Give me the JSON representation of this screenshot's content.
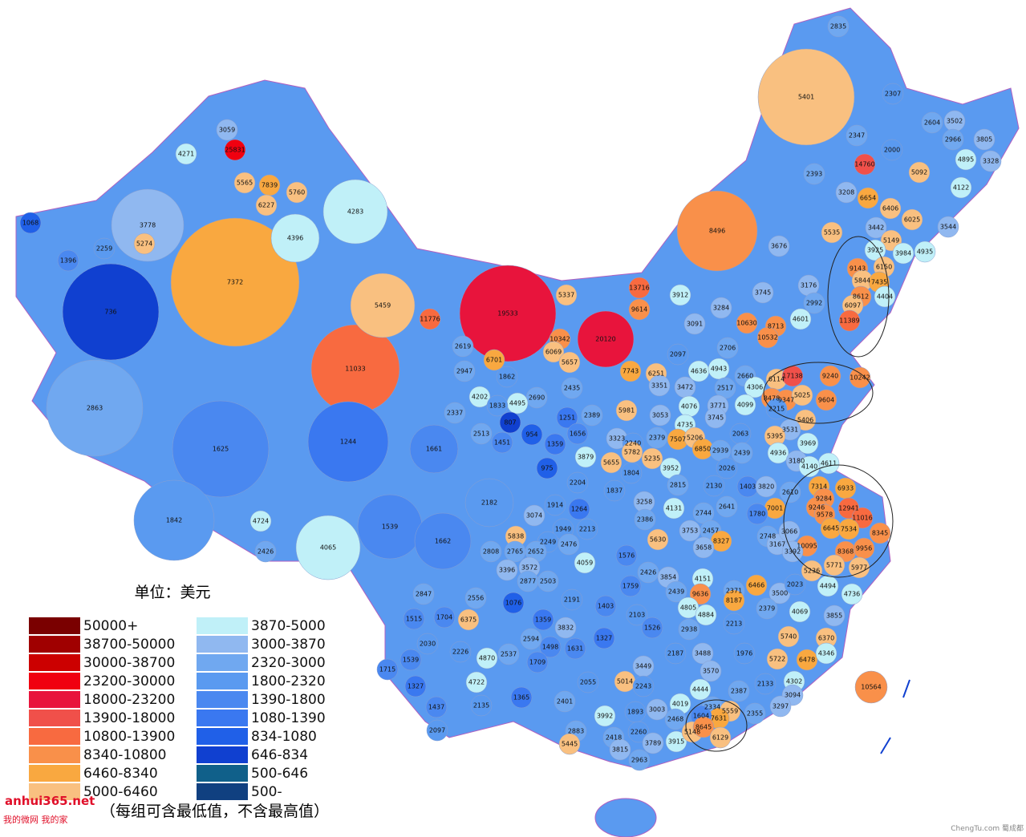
{
  "map": {
    "unit": "单位：美元",
    "note": "（每组可含最低值，不含最高值）",
    "watermark": "anhui365.net",
    "watermark_sub": "我的微网 我的家",
    "credit": "ChengTu.com 蜀成都",
    "legend": [
      {
        "label": "50000+",
        "color": "#7a0000"
      },
      {
        "label": "38700-50000",
        "color": "#a00000"
      },
      {
        "label": "30000-38700",
        "color": "#cc0000"
      },
      {
        "label": "23200-30000",
        "color": "#f00010"
      },
      {
        "label": "18000-23200",
        "color": "#e8143c"
      },
      {
        "label": "13900-18000",
        "color": "#f0504a"
      },
      {
        "label": "10800-13900",
        "color": "#f86a40"
      },
      {
        "label": "8340-10800",
        "color": "#f9904a"
      },
      {
        "label": "6460-8340",
        "color": "#f9a840"
      },
      {
        "label": "5000-6460",
        "color": "#f9c080"
      },
      {
        "label": "3870-5000",
        "color": "#c0f0f8"
      },
      {
        "label": "3000-3870",
        "color": "#90b8f0"
      },
      {
        "label": "2320-3000",
        "color": "#70a8f0"
      },
      {
        "label": "1800-2320",
        "color": "#5a9af0"
      },
      {
        "label": "1390-1800",
        "color": "#4a88f0"
      },
      {
        "label": "1080-1390",
        "color": "#3a78f0"
      },
      {
        "label": "834-1080",
        "color": "#2060e8"
      },
      {
        "label": "646-834",
        "color": "#1040d0"
      },
      {
        "label": "500-646",
        "color": "#10608a"
      },
      {
        "label": "500-",
        "color": "#104080"
      }
    ],
    "regions": [
      7372,
      19533,
      736,
      2863,
      1625,
      11033,
      1244,
      5459,
      4283,
      4396,
      3778,
      5401,
      8496,
      1842,
      4065,
      1539,
      20120,
      1662,
      2182,
      1661,
      3059,
      4271,
      25831,
      5565,
      7839,
      6227,
      5760,
      1068,
      5274,
      2259,
      1396,
      4724,
      2426,
      5337,
      13716,
      9614,
      3912,
      2835,
      2307,
      2604,
      3502,
      2347,
      2966,
      3805,
      14760,
      2000,
      4895,
      3328,
      2393,
      5092,
      4122,
      3208,
      6654,
      6406,
      6025,
      3544,
      5535,
      3676,
      3442,
      5149,
      3925,
      3984,
      4935,
      9143,
      6150,
      5844,
      7435,
      8612,
      4404,
      6097,
      11389,
      3745,
      3176,
      2992,
      3284,
      10630,
      8713,
      4601,
      3091,
      10532,
      2706,
      2097,
      4636,
      4943,
      2660,
      6251,
      3472,
      2517,
      6114,
      17138,
      9240,
      10242,
      3351,
      4306,
      8478,
      9347,
      5025,
      9604,
      4076,
      3771,
      4099,
      2215,
      5406,
      7743,
      5981,
      6701,
      1862,
      4202,
      2947,
      2619,
      11776,
      10342,
      6069,
      5657,
      2435,
      2690,
      4495,
      1833,
      2337,
      2389,
      807,
      1251,
      954,
      1359,
      1656,
      2513,
      1451,
      3323,
      2240,
      3879,
      5655,
      975,
      1804,
      3053,
      4735,
      3745,
      2379,
      5235,
      5782,
      7507,
      5206,
      6850,
      2939,
      2063,
      3531,
      5395,
      3969,
      4936,
      2439,
      3180,
      4611,
      4140,
      3952,
      2026,
      2815,
      2130,
      1403,
      3820,
      2610,
      7314,
      6933,
      1837,
      2204,
      3258,
      4131,
      2744,
      2641,
      7001,
      9284,
      9246,
      9578,
      12941,
      11016,
      3074,
      1914,
      1264,
      1949,
      2213,
      2476,
      5838,
      2249,
      2765,
      2652,
      2808,
      3572,
      3396,
      2877,
      2503,
      4059,
      1576,
      2386,
      5630,
      3753,
      2457,
      8327,
      3658,
      1780,
      2748,
      3167,
      3066,
      6645,
      7534,
      8345,
      10095,
      8368,
      9956,
      3392,
      5771,
      5977,
      5236,
      2847,
      2556,
      1076,
      2191,
      1403,
      2426,
      3854,
      4151,
      2439,
      9636,
      2371,
      6466,
      3500,
      2023,
      4494,
      4736,
      1759,
      4805,
      4884,
      8187,
      2379,
      4069,
      3855,
      1515,
      1704,
      6375,
      1359,
      3832,
      1327,
      2103,
      1526,
      2938,
      2213,
      5740,
      6370,
      2594,
      1498,
      1631,
      4870,
      2537,
      1709,
      2030,
      2226,
      1715,
      1539,
      3449,
      3488,
      2187,
      1976,
      5722,
      6478,
      4346,
      3570,
      2055,
      5014,
      4722,
      1327,
      2243,
      2133,
      4302,
      4444,
      2387,
      3094,
      10564,
      1437,
      2135,
      1365,
      2401,
      4019,
      2334,
      5559,
      2355,
      3297,
      3992,
      1893,
      3003,
      2468,
      7631,
      1604,
      2097,
      2883,
      5445,
      2418,
      2260,
      3789,
      3915,
      5148,
      8645,
      6129,
      3815,
      2963
    ]
  }
}
